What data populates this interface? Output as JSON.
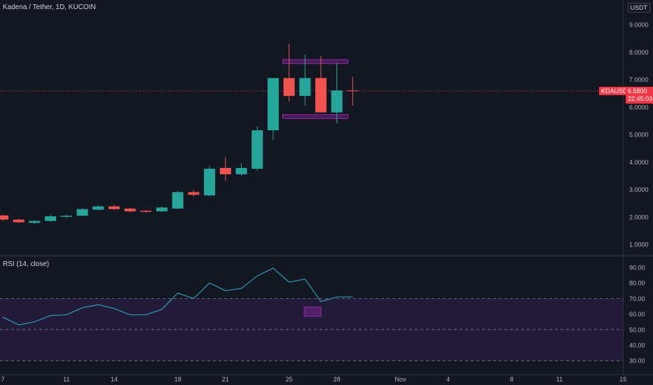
{
  "header": {
    "title": "Kadena / Tether, 1D, KUCOIN",
    "currency": "USDT"
  },
  "last_price": {
    "symbol": "KDAUSDT",
    "price": "6.5800",
    "countdown": "22:45:03"
  },
  "rsi_header": "RSI (14, close)",
  "colors": {
    "bg": "#131722",
    "up": "#26a69a",
    "down": "#ef5350",
    "rsi_line": "#2a9db5",
    "rsi_band": "#2a1f45",
    "box": "#9c27b0",
    "price_line": "#f23645"
  },
  "chart_data": [
    {
      "type": "candlestick",
      "title": "Kadena / Tether, 1D, KUCOIN",
      "y_ticks": [
        "1.0000",
        "2.0000",
        "3.0000",
        "4.0000",
        "5.0000",
        "6.0000",
        "7.0000",
        "8.0000",
        "9.0000"
      ],
      "ylim": [
        0.5,
        9.8
      ],
      "x_tick_labels": [
        {
          "day": 7,
          "label": "7"
        },
        {
          "day": 11,
          "label": "11"
        },
        {
          "day": 14,
          "label": "14"
        },
        {
          "day": 18,
          "label": "18"
        },
        {
          "day": 21,
          "label": "21"
        },
        {
          "day": 25,
          "label": "25"
        },
        {
          "day": 28,
          "label": "28"
        },
        {
          "day": 32,
          "label": "Nov"
        },
        {
          "day": 35,
          "label": "4"
        },
        {
          "day": 39,
          "label": "8"
        },
        {
          "day": 42,
          "label": "11"
        },
        {
          "day": 46,
          "label": "15"
        }
      ],
      "candles": [
        {
          "day": 7,
          "open": 2.05,
          "high": 2.08,
          "low": 1.85,
          "close": 1.9
        },
        {
          "day": 8,
          "open": 1.9,
          "high": 1.93,
          "low": 1.78,
          "close": 1.8
        },
        {
          "day": 9,
          "open": 1.78,
          "high": 1.88,
          "low": 1.74,
          "close": 1.85
        },
        {
          "day": 10,
          "open": 1.85,
          "high": 2.08,
          "low": 1.82,
          "close": 2.02
        },
        {
          "day": 11,
          "open": 2.0,
          "high": 2.08,
          "low": 1.96,
          "close": 2.04
        },
        {
          "day": 12,
          "open": 2.04,
          "high": 2.32,
          "low": 2.02,
          "close": 2.28
        },
        {
          "day": 13,
          "open": 2.26,
          "high": 2.42,
          "low": 2.24,
          "close": 2.38
        },
        {
          "day": 14,
          "open": 2.38,
          "high": 2.44,
          "low": 2.24,
          "close": 2.28
        },
        {
          "day": 15,
          "open": 2.3,
          "high": 2.32,
          "low": 2.16,
          "close": 2.2
        },
        {
          "day": 16,
          "open": 2.22,
          "high": 2.25,
          "low": 2.15,
          "close": 2.18
        },
        {
          "day": 17,
          "open": 2.2,
          "high": 2.38,
          "low": 2.18,
          "close": 2.34
        },
        {
          "day": 18,
          "open": 2.3,
          "high": 2.95,
          "low": 2.28,
          "close": 2.9
        },
        {
          "day": 19,
          "open": 2.9,
          "high": 2.97,
          "low": 2.75,
          "close": 2.8
        },
        {
          "day": 20,
          "open": 2.78,
          "high": 3.85,
          "low": 2.75,
          "close": 3.75
        },
        {
          "day": 21,
          "open": 3.78,
          "high": 4.18,
          "low": 3.3,
          "close": 3.55
        },
        {
          "day": 22,
          "open": 3.55,
          "high": 3.95,
          "low": 3.5,
          "close": 3.78
        },
        {
          "day": 23,
          "open": 3.75,
          "high": 5.3,
          "low": 3.68,
          "close": 5.15
        },
        {
          "day": 24,
          "open": 5.15,
          "high": 7.05,
          "low": 4.8,
          "close": 7.05
        },
        {
          "day": 25,
          "open": 7.05,
          "high": 8.3,
          "low": 6.2,
          "close": 6.4
        },
        {
          "day": 26,
          "open": 6.4,
          "high": 7.9,
          "low": 6.05,
          "close": 7.05
        },
        {
          "day": 27,
          "open": 7.05,
          "high": 7.85,
          "low": 5.85,
          "close": 5.8
        },
        {
          "day": 28,
          "open": 5.8,
          "high": 7.6,
          "low": 5.4,
          "close": 6.6
        },
        {
          "day": 29,
          "open": 6.6,
          "high": 7.1,
          "low": 6.05,
          "close": 6.58
        }
      ],
      "resistance_zone": {
        "from_day": 24.6,
        "to_day": 28.7,
        "low": 7.58,
        "high": 7.72
      },
      "support_zone": {
        "from_day": 24.6,
        "to_day": 28.7,
        "low": 5.58,
        "high": 5.72
      },
      "last_price_line": 6.58
    },
    {
      "type": "line",
      "title": "RSI (14, close)",
      "y_ticks": [
        "30.00",
        "40.00",
        "50.00",
        "60.00",
        "70.00",
        "80.00",
        "90.00"
      ],
      "ylim": [
        25,
        95
      ],
      "levels": [
        30,
        50,
        70
      ],
      "overbought_band": [
        30,
        70
      ],
      "series": [
        {
          "values": [
            {
              "day": 7,
              "value": 58
            },
            {
              "day": 8,
              "value": 53
            },
            {
              "day": 9,
              "value": 55
            },
            {
              "day": 10,
              "value": 59
            },
            {
              "day": 11,
              "value": 59.5
            },
            {
              "day": 12,
              "value": 64
            },
            {
              "day": 13,
              "value": 66
            },
            {
              "day": 14,
              "value": 63.5
            },
            {
              "day": 15,
              "value": 59.5
            },
            {
              "day": 16,
              "value": 59.5
            },
            {
              "day": 17,
              "value": 63
            },
            {
              "day": 18,
              "value": 73.5
            },
            {
              "day": 19,
              "value": 70
            },
            {
              "day": 20,
              "value": 80
            },
            {
              "day": 21,
              "value": 75
            },
            {
              "day": 22,
              "value": 76.5
            },
            {
              "day": 23,
              "value": 84.5
            },
            {
              "day": 24,
              "value": 89.5
            },
            {
              "day": 25,
              "value": 80.5
            },
            {
              "day": 26,
              "value": 82.5
            },
            {
              "day": 27,
              "value": 68
            },
            {
              "day": 28,
              "value": 71
            },
            {
              "day": 29,
              "value": 71
            }
          ]
        }
      ],
      "highlight_box": {
        "from_day": 25.95,
        "to_day": 27.0,
        "low": 58.5,
        "high": 64.5
      }
    }
  ]
}
